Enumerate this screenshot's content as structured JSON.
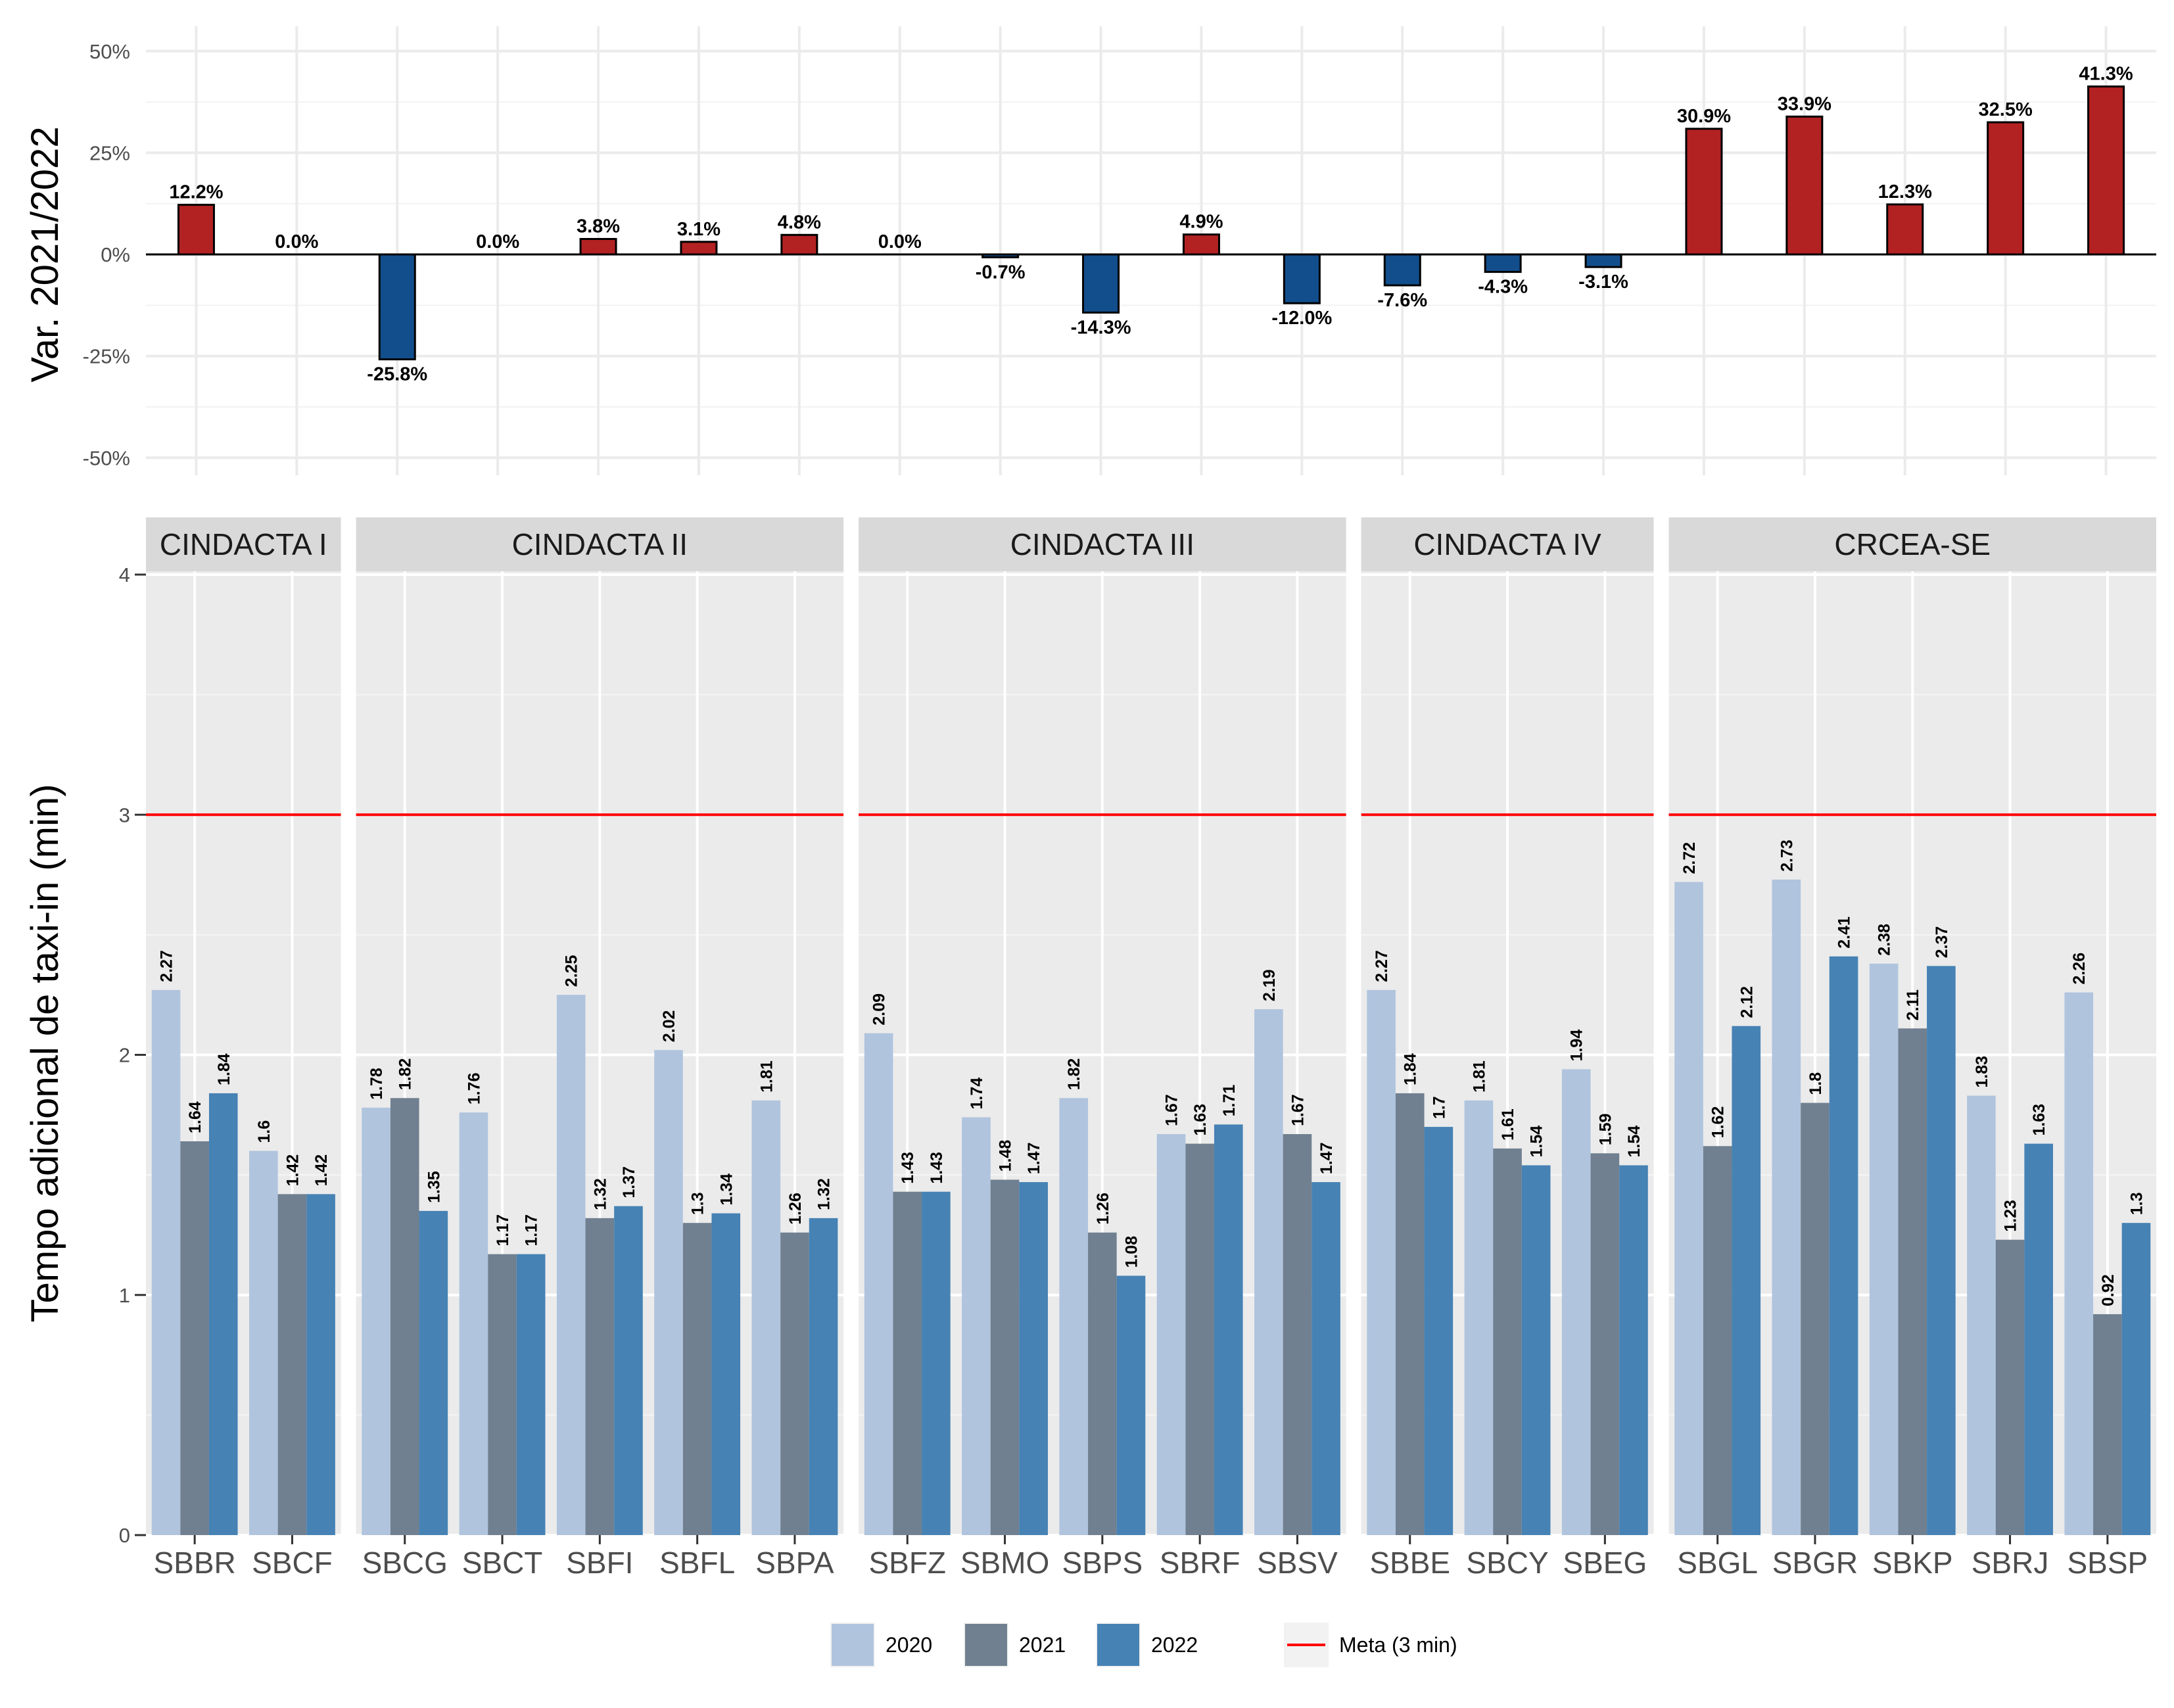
{
  "chart_data": [
    {
      "type": "bar",
      "ylabel": "Var. 2021/2022",
      "ylim": [
        -55,
        55
      ],
      "yticks": [
        "-50%",
        "-25%",
        "0%",
        "25%",
        "50%"
      ],
      "ytick_values": [
        -50,
        -25,
        0,
        25,
        50
      ],
      "categories": [
        "SBBR",
        "SBCF",
        "SBCG",
        "SBCT",
        "SBFI",
        "SBFL",
        "SBPA",
        "SBFZ",
        "SBMO",
        "SBPS",
        "SBRF",
        "SBSV",
        "SBBE",
        "SBCY",
        "SBEG",
        "SBGL",
        "SBGR",
        "SBKP",
        "SBRJ",
        "SBSP"
      ],
      "values": [
        12.2,
        0.0,
        -25.8,
        0.0,
        3.8,
        3.1,
        4.8,
        0.0,
        -0.7,
        -14.3,
        4.9,
        -12.0,
        -7.6,
        -4.3,
        -3.1,
        30.9,
        33.9,
        12.3,
        32.5,
        41.3
      ],
      "labels": [
        "12.2%",
        "0.0%",
        "-25.8%",
        "0.0%",
        "3.8%",
        "3.1%",
        "4.8%",
        "0.0%",
        "-0.7%",
        "-14.3%",
        "4.9%",
        "-12.0%",
        "-7.6%",
        "-4.3%",
        "-3.1%",
        "30.9%",
        "33.9%",
        "12.3%",
        "32.5%",
        "41.3%"
      ],
      "colors": {
        "positive": "#b22222",
        "negative": "#124e8c"
      }
    },
    {
      "type": "bar",
      "ylabel": "Tempo adicional de taxi-in (min)",
      "ylim": [
        0,
        4
      ],
      "yticks": [
        "0",
        "1",
        "2",
        "3",
        "4"
      ],
      "ytick_values": [
        0,
        1,
        2,
        3,
        4
      ],
      "target": {
        "value": 3,
        "label": "Meta (3 min)",
        "color": "#ff0000"
      },
      "series_names": [
        "2020",
        "2021",
        "2022"
      ],
      "series_colors": [
        "#b0c4de",
        "#708090",
        "#4682b4"
      ],
      "panels": [
        {
          "name": "CINDACTA I",
          "airports": [
            {
              "code": "SBBR",
              "values": [
                2.27,
                1.64,
                1.84
              ],
              "labels": [
                "2.27",
                "1.64",
                "1.84"
              ]
            },
            {
              "code": "SBCF",
              "values": [
                1.6,
                1.42,
                1.42
              ],
              "labels": [
                "1.6",
                "1.42",
                "1.42"
              ]
            }
          ]
        },
        {
          "name": "CINDACTA II",
          "airports": [
            {
              "code": "SBCG",
              "values": [
                1.78,
                1.82,
                1.35
              ],
              "labels": [
                "1.78",
                "1.82",
                "1.35"
              ]
            },
            {
              "code": "SBCT",
              "values": [
                1.76,
                1.17,
                1.17
              ],
              "labels": [
                "1.76",
                "1.17",
                "1.17"
              ]
            },
            {
              "code": "SBFI",
              "values": [
                2.25,
                1.32,
                1.37
              ],
              "labels": [
                "2.25",
                "1.32",
                "1.37"
              ]
            },
            {
              "code": "SBFL",
              "values": [
                2.02,
                1.3,
                1.34
              ],
              "labels": [
                "2.02",
                "1.3",
                "1.34"
              ]
            },
            {
              "code": "SBPA",
              "values": [
                1.81,
                1.26,
                1.32
              ],
              "labels": [
                "1.81",
                "1.26",
                "1.32"
              ]
            }
          ]
        },
        {
          "name": "CINDACTA III",
          "airports": [
            {
              "code": "SBFZ",
              "values": [
                2.09,
                1.43,
                1.43
              ],
              "labels": [
                "2.09",
                "1.43",
                "1.43"
              ]
            },
            {
              "code": "SBMO",
              "values": [
                1.74,
                1.48,
                1.47
              ],
              "labels": [
                "1.74",
                "1.48",
                "1.47"
              ]
            },
            {
              "code": "SBPS",
              "values": [
                1.82,
                1.26,
                1.08
              ],
              "labels": [
                "1.82",
                "1.26",
                "1.08"
              ]
            },
            {
              "code": "SBRF",
              "values": [
                1.67,
                1.63,
                1.71
              ],
              "labels": [
                "1.67",
                "1.63",
                "1.71"
              ]
            },
            {
              "code": "SBSV",
              "values": [
                2.19,
                1.67,
                1.47
              ],
              "labels": [
                "2.19",
                "1.67",
                "1.47"
              ]
            }
          ]
        },
        {
          "name": "CINDACTA IV",
          "airports": [
            {
              "code": "SBBE",
              "values": [
                2.27,
                1.84,
                1.7
              ],
              "labels": [
                "2.27",
                "1.84",
                "1.7"
              ]
            },
            {
              "code": "SBCY",
              "values": [
                1.81,
                1.61,
                1.54
              ],
              "labels": [
                "1.81",
                "1.61",
                "1.54"
              ]
            },
            {
              "code": "SBEG",
              "values": [
                1.94,
                1.59,
                1.54
              ],
              "labels": [
                "1.94",
                "1.59",
                "1.54"
              ]
            }
          ]
        },
        {
          "name": "CRCEA-SE",
          "airports": [
            {
              "code": "SBGL",
              "values": [
                2.72,
                1.62,
                2.12
              ],
              "labels": [
                "2.72",
                "1.62",
                "2.12"
              ]
            },
            {
              "code": "SBGR",
              "values": [
                2.73,
                1.8,
                2.41
              ],
              "labels": [
                "2.73",
                "1.8",
                "2.41"
              ]
            },
            {
              "code": "SBKP",
              "values": [
                2.38,
                2.11,
                2.37
              ],
              "labels": [
                "2.38",
                "2.11",
                "2.37"
              ]
            },
            {
              "code": "SBRJ",
              "values": [
                1.83,
                1.23,
                1.63
              ],
              "labels": [
                "1.83",
                "1.23",
                "1.63"
              ]
            },
            {
              "code": "SBSP",
              "values": [
                2.26,
                0.92,
                1.3
              ],
              "labels": [
                "2.26",
                "0.92",
                "1.3"
              ]
            }
          ]
        }
      ],
      "legend": {
        "placement": "bottom",
        "items": [
          "2020",
          "2021",
          "2022"
        ],
        "line_item": "Meta (3 min)"
      }
    }
  ]
}
